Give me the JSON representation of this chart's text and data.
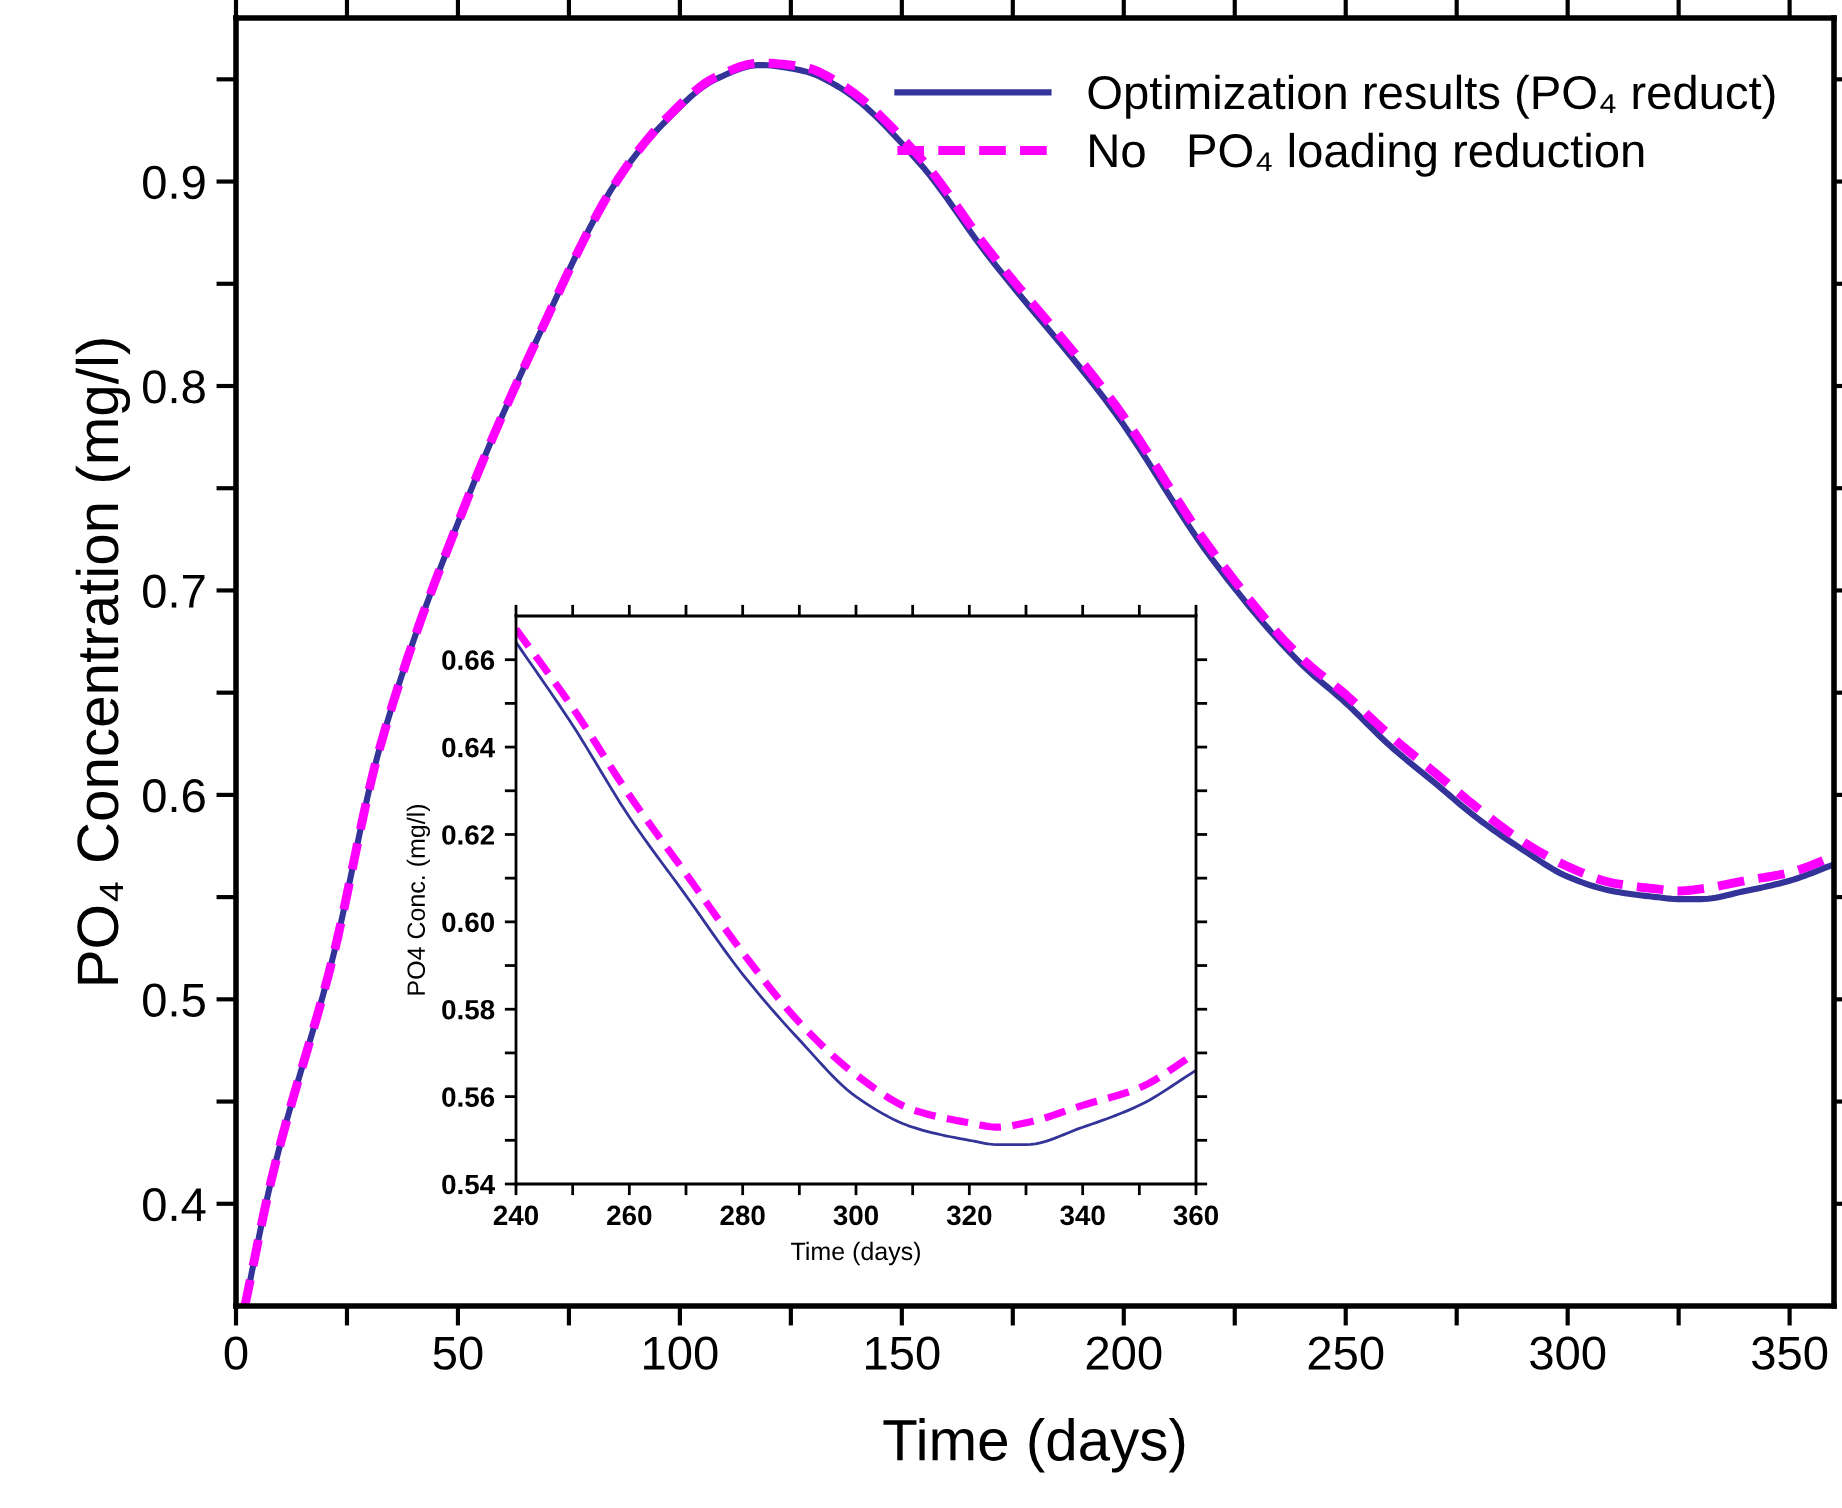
{
  "chart_data": [
    {
      "type": "line",
      "xlabel": "Time (days)",
      "ylabel": "PO₄ Concentration (mg/l)",
      "xlim": [
        0,
        360
      ],
      "ylim": [
        0.35,
        0.98
      ],
      "xticks": [
        0,
        {
          "value": 25,
          "label": null
        },
        50,
        {
          "value": 75,
          "label": null
        },
        100,
        {
          "value": 125,
          "label": null
        },
        150,
        {
          "value": 175,
          "label": null
        },
        200,
        {
          "value": 225,
          "label": null
        },
        250,
        {
          "value": 275,
          "label": null
        },
        300,
        {
          "value": 325,
          "label": null
        },
        350
      ],
      "yticks": [
        0.4,
        {
          "value": 0.45,
          "label": null
        },
        0.5,
        {
          "value": 0.55,
          "label": null
        },
        0.6,
        {
          "value": 0.65,
          "label": null
        },
        0.7,
        {
          "value": 0.75,
          "label": null
        },
        0.8,
        {
          "value": 0.85,
          "label": null
        },
        0.9,
        {
          "value": 0.95,
          "label": null
        }
      ],
      "legend": "top right",
      "grid": false,
      "series": [
        {
          "name": "Optimization results (PO₄ reduct)",
          "color": "#333399",
          "line_style": "solid",
          "x": [
            2,
            8,
            22,
            32,
            52,
            67,
            86,
            97,
            108,
            118,
            128,
            136,
            154,
            169,
            198,
            220,
            240,
            250,
            260,
            270,
            280,
            290,
            300,
            310,
            320,
            325,
            330,
            340,
            350,
            360
          ],
          "values": [
            0.35,
            0.412,
            0.522,
            0.62,
            0.744,
            0.819,
            0.901,
            0.93,
            0.95,
            0.957,
            0.954,
            0.946,
            0.909,
            0.865,
            0.787,
            0.715,
            0.664,
            0.645,
            0.624,
            0.606,
            0.588,
            0.573,
            0.56,
            0.553,
            0.55,
            0.549,
            0.549,
            0.553,
            0.558,
            0.566
          ]
        },
        {
          "name": "No   PO₄ loading reduction",
          "color": "#ff00ff",
          "line_style": "dashed",
          "x": [
            2,
            8,
            22,
            32,
            52,
            67,
            86,
            97,
            108,
            118,
            128,
            136,
            154,
            169,
            198,
            220,
            240,
            250,
            260,
            270,
            280,
            290,
            300,
            310,
            320,
            325,
            330,
            340,
            350,
            360
          ],
          "values": [
            0.35,
            0.412,
            0.522,
            0.62,
            0.744,
            0.819,
            0.901,
            0.931,
            0.951,
            0.958,
            0.956,
            0.948,
            0.912,
            0.868,
            0.791,
            0.719,
            0.667,
            0.649,
            0.629,
            0.611,
            0.593,
            0.577,
            0.565,
            0.557,
            0.554,
            0.553,
            0.554,
            0.558,
            0.562,
            0.57
          ]
        }
      ]
    },
    {
      "type": "line",
      "xlabel": "Time (days)",
      "ylabel": "PO4 Conc. (mg/l)",
      "xlim": [
        240,
        360
      ],
      "ylim": [
        0.54,
        0.67
      ],
      "xticks": [
        240,
        {
          "value": 250,
          "label": null
        },
        260,
        {
          "value": 270,
          "label": null
        },
        280,
        {
          "value": 290,
          "label": null
        },
        300,
        {
          "value": 310,
          "label": null
        },
        320,
        {
          "value": 330,
          "label": null
        },
        340,
        {
          "value": 350,
          "label": null
        },
        360
      ],
      "yticks": [
        {
          "value": 0.54,
          "label": "0.54"
        },
        {
          "value": 0.55,
          "label": null
        },
        {
          "value": 0.56,
          "label": "0.56"
        },
        {
          "value": 0.57,
          "label": null
        },
        {
          "value": 0.58,
          "label": "0.58"
        },
        {
          "value": 0.59,
          "label": null
        },
        {
          "value": 0.6,
          "label": "0.60"
        },
        {
          "value": 0.61,
          "label": null
        },
        {
          "value": 0.62,
          "label": "0.62"
        },
        {
          "value": 0.63,
          "label": null
        },
        {
          "value": 0.64,
          "label": "0.64"
        },
        {
          "value": 0.65,
          "label": null
        },
        {
          "value": 0.66,
          "label": "0.66"
        }
      ],
      "grid": false,
      "series": [
        {
          "color": "#333399",
          "line_style": "solid",
          "x": [
            240,
            250,
            260,
            270,
            280,
            290,
            300,
            310,
            320,
            325,
            330,
            340,
            350,
            360
          ],
          "values": [
            0.664,
            0.645,
            0.624,
            0.606,
            0.588,
            0.573,
            0.56,
            0.553,
            0.55,
            0.549,
            0.549,
            0.553,
            0.558,
            0.566
          ]
        },
        {
          "color": "#ff00ff",
          "line_style": "dashed",
          "x": [
            240,
            250,
            260,
            270,
            280,
            290,
            300,
            310,
            320,
            325,
            330,
            340,
            350,
            360
          ],
          "values": [
            0.667,
            0.649,
            0.629,
            0.611,
            0.593,
            0.577,
            0.565,
            0.557,
            0.554,
            0.553,
            0.554,
            0.558,
            0.562,
            0.57
          ]
        }
      ]
    }
  ]
}
